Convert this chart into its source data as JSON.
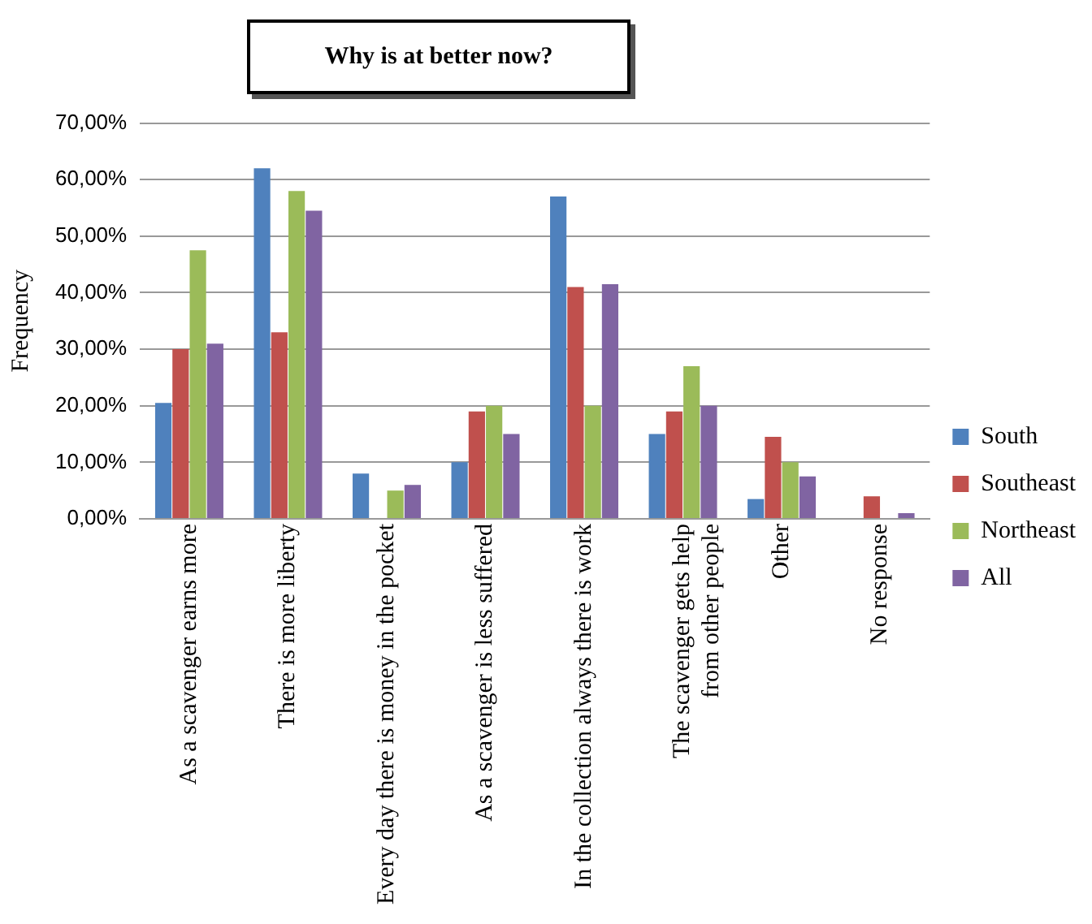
{
  "chart_data": {
    "type": "bar",
    "title": "Why is at better now?",
    "ylabel": "Frequency",
    "categories": [
      "As a scavenger earns more",
      "There is more liberty",
      "Every day there is money in the pocket",
      "As a scavenger is less suffered",
      "In the collection always there is work",
      "The scavenger gets help from other people",
      "Other",
      "No response"
    ],
    "series": [
      {
        "name": "South",
        "color": "#4f81bd",
        "values": [
          20.5,
          62,
          8,
          10,
          57,
          15,
          3.5,
          0
        ]
      },
      {
        "name": "Southeast",
        "color": "#c0504d",
        "values": [
          30,
          33,
          0,
          19,
          41,
          19,
          14.5,
          4
        ]
      },
      {
        "name": "Northeast",
        "color": "#9bbb59",
        "values": [
          47.5,
          58,
          5,
          20,
          20,
          27,
          10,
          0
        ]
      },
      {
        "name": "All",
        "color": "#8064a2",
        "values": [
          31,
          54.5,
          6,
          15,
          41.5,
          20,
          7.5,
          1
        ]
      }
    ],
    "ylim": [
      0,
      70
    ],
    "yticks": [
      {
        "value": 0,
        "label": "0,00%"
      },
      {
        "value": 10,
        "label": "10,00%"
      },
      {
        "value": 20,
        "label": "20,00%"
      },
      {
        "value": 30,
        "label": "30,00%"
      },
      {
        "value": 40,
        "label": "40,00%"
      },
      {
        "value": 50,
        "label": "50,00%"
      },
      {
        "value": 60,
        "label": "60,00%"
      },
      {
        "value": 70,
        "label": "70,00%"
      }
    ],
    "grid": "y",
    "legend": "right"
  }
}
